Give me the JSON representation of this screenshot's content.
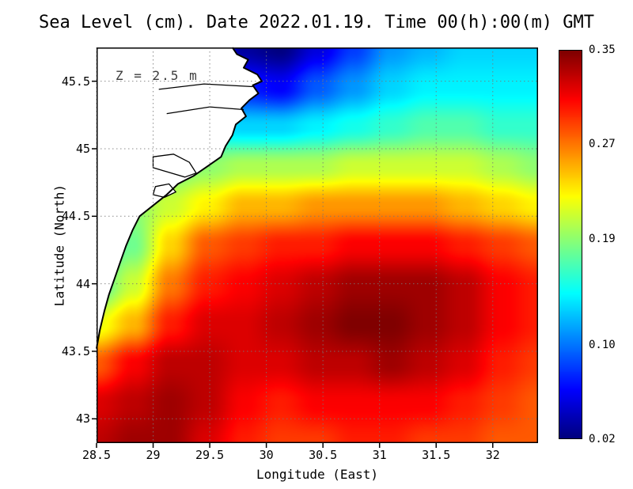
{
  "chart_data": {
    "type": "heatmap",
    "title": "Sea Level (cm). Date 2022.01.19. Time 00(h):00(m) GMT",
    "annotation": "Z = 2.5 m",
    "xlabel": "Longitude (East)",
    "ylabel": "Latitude (North)",
    "x_ticks": [
      "28.5",
      "29",
      "29.5",
      "30",
      "30.5",
      "31",
      "31.5",
      "32"
    ],
    "y_ticks": [
      "43",
      "43.5",
      "44",
      "44.5",
      "45",
      "45.5"
    ],
    "x_range": [
      28.5,
      32.4
    ],
    "y_range": [
      42.82,
      45.75
    ],
    "grid_on": true,
    "colorbar": {
      "tick_labels": [
        "0.35",
        "0.27",
        "0.19",
        "0.10",
        "0.02"
      ],
      "min": 0.02,
      "max": 0.35,
      "colormap": "jet",
      "position": "right"
    },
    "grid": {
      "lon": [
        28.5,
        28.825,
        29.15,
        29.475,
        29.8,
        30.125,
        30.45,
        30.775,
        31.1,
        31.425,
        31.75,
        32.075,
        32.4
      ],
      "lat": [
        45.75,
        45.457,
        45.164,
        44.871,
        44.578,
        44.285,
        43.992,
        43.699,
        43.406,
        43.113,
        42.82
      ],
      "values": [
        [
          0.12,
          0.12,
          0.11,
          0.08,
          0.03,
          0.02,
          0.05,
          0.08,
          0.11,
          0.12,
          0.13,
          0.13,
          0.13
        ],
        [
          0.13,
          0.13,
          0.12,
          0.1,
          0.07,
          0.06,
          0.09,
          0.11,
          0.13,
          0.14,
          0.14,
          0.14,
          0.14
        ],
        [
          0.15,
          0.15,
          0.15,
          0.14,
          0.13,
          0.13,
          0.14,
          0.15,
          0.16,
          0.17,
          0.17,
          0.16,
          0.16
        ],
        [
          0.17,
          0.17,
          0.18,
          0.19,
          0.2,
          0.2,
          0.2,
          0.21,
          0.21,
          0.21,
          0.21,
          0.2,
          0.19
        ],
        [
          0.17,
          0.19,
          0.21,
          0.23,
          0.25,
          0.25,
          0.26,
          0.26,
          0.26,
          0.26,
          0.25,
          0.24,
          0.23
        ],
        [
          0.16,
          0.18,
          0.24,
          0.28,
          0.29,
          0.3,
          0.3,
          0.31,
          0.31,
          0.31,
          0.3,
          0.29,
          0.28
        ],
        [
          0.17,
          0.21,
          0.27,
          0.3,
          0.31,
          0.32,
          0.33,
          0.34,
          0.34,
          0.34,
          0.33,
          0.31,
          0.3
        ],
        [
          0.22,
          0.25,
          0.3,
          0.32,
          0.32,
          0.33,
          0.34,
          0.35,
          0.35,
          0.34,
          0.33,
          0.31,
          0.3
        ],
        [
          0.28,
          0.31,
          0.33,
          0.33,
          0.32,
          0.32,
          0.33,
          0.33,
          0.34,
          0.33,
          0.32,
          0.3,
          0.29
        ],
        [
          0.32,
          0.33,
          0.34,
          0.33,
          0.31,
          0.3,
          0.31,
          0.31,
          0.31,
          0.31,
          0.3,
          0.29,
          0.28
        ],
        [
          0.33,
          0.34,
          0.34,
          0.32,
          0.3,
          0.29,
          0.29,
          0.3,
          0.3,
          0.29,
          0.29,
          0.28,
          0.28
        ]
      ]
    },
    "map": {
      "coastline": [
        [
          29.7,
          45.75
        ],
        [
          29.74,
          45.7
        ],
        [
          29.84,
          45.66
        ],
        [
          29.8,
          45.6
        ],
        [
          29.92,
          45.55
        ],
        [
          29.96,
          45.5
        ],
        [
          29.88,
          45.47
        ],
        [
          29.93,
          45.41
        ],
        [
          29.85,
          45.36
        ],
        [
          29.78,
          45.3
        ],
        [
          29.82,
          45.24
        ],
        [
          29.73,
          45.18
        ],
        [
          29.7,
          45.1
        ],
        [
          29.64,
          45.02
        ],
        [
          29.6,
          44.94
        ],
        [
          29.48,
          44.87
        ],
        [
          29.36,
          44.8
        ],
        [
          29.22,
          44.74
        ],
        [
          29.12,
          44.66
        ],
        [
          29.0,
          44.58
        ],
        [
          28.88,
          44.5
        ],
        [
          28.82,
          44.4
        ],
        [
          28.76,
          44.28
        ],
        [
          28.71,
          44.16
        ],
        [
          28.66,
          44.04
        ],
        [
          28.61,
          43.92
        ],
        [
          28.57,
          43.8
        ],
        [
          28.53,
          43.66
        ],
        [
          28.5,
          43.52
        ]
      ],
      "lagoons": [
        [
          [
            29.0,
            44.94
          ],
          [
            29.18,
            44.96
          ],
          [
            29.32,
            44.9
          ],
          [
            29.38,
            44.82
          ],
          [
            29.28,
            44.79
          ],
          [
            29.12,
            44.83
          ],
          [
            29.0,
            44.86
          ]
        ],
        [
          [
            29.02,
            44.72
          ],
          [
            29.14,
            44.74
          ],
          [
            29.2,
            44.68
          ],
          [
            29.1,
            44.64
          ],
          [
            29.0,
            44.66
          ]
        ]
      ],
      "delta_branches": [
        [
          [
            29.05,
            45.44
          ],
          [
            29.45,
            45.48
          ],
          [
            29.88,
            45.46
          ]
        ],
        [
          [
            29.12,
            45.26
          ],
          [
            29.5,
            45.31
          ],
          [
            29.8,
            45.29
          ]
        ]
      ]
    }
  },
  "colors": {
    "frame": "#000000",
    "gridline": "#787878",
    "land": "#ffffff",
    "coastline": "#000000",
    "annotation": "#3c3c3c",
    "text": "#000000"
  }
}
